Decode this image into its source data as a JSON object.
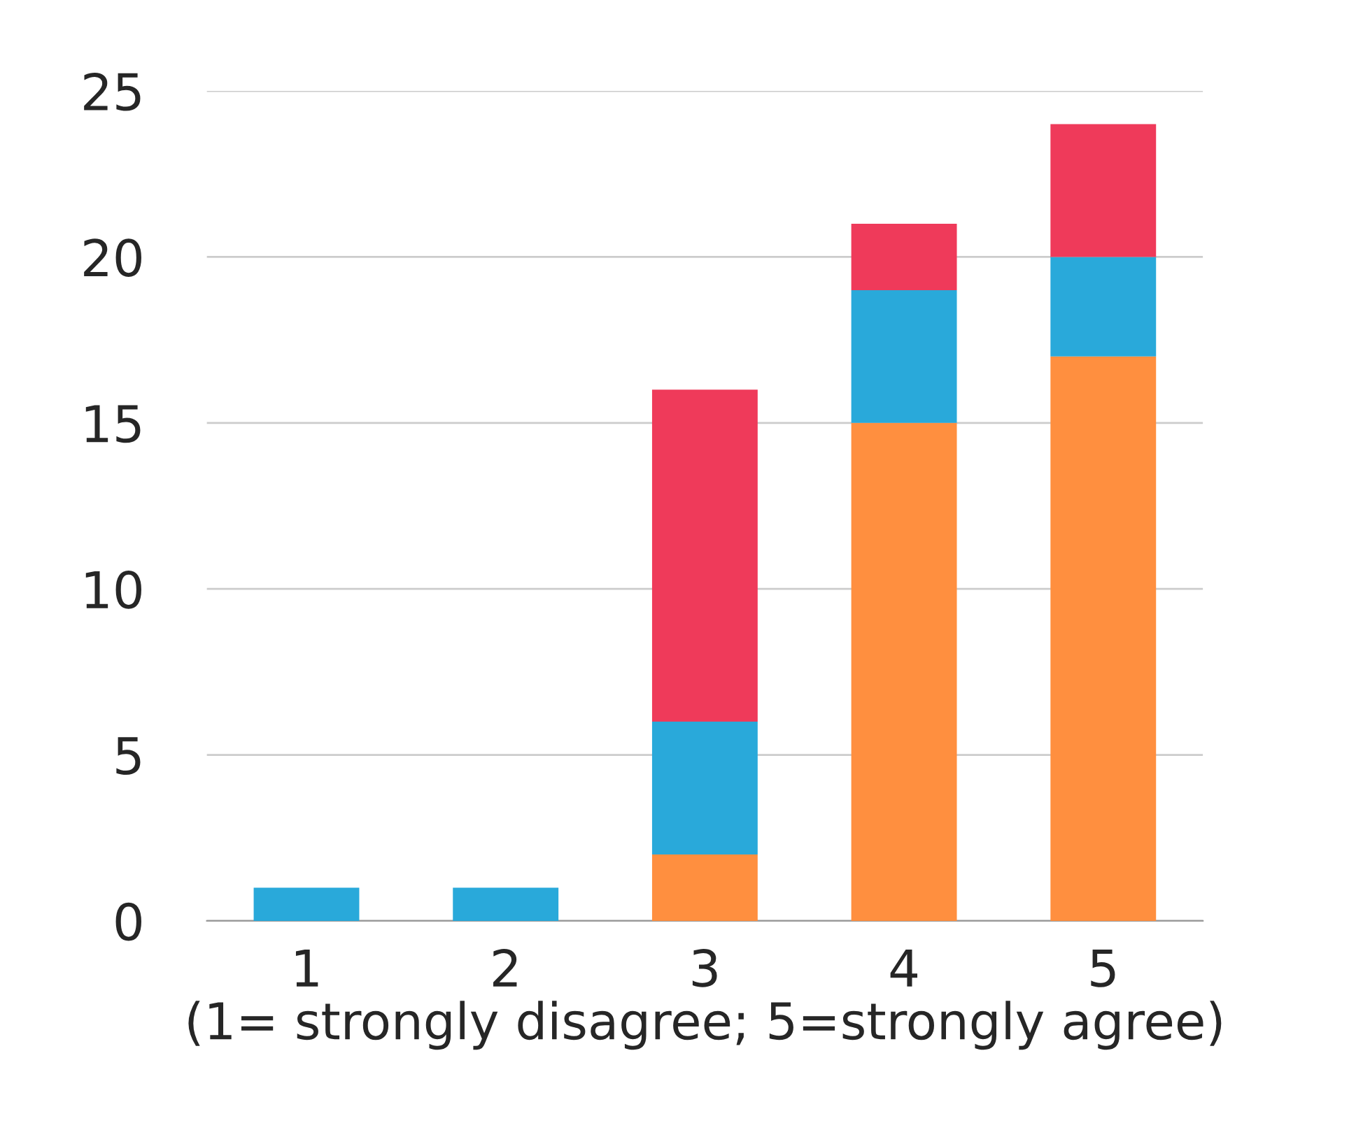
{
  "chart_data": {
    "type": "bar",
    "stacked": true,
    "xlabel": "(1= strongly disagree; 5=strongly agree)",
    "categories": [
      "1",
      "2",
      "3",
      "4",
      "5"
    ],
    "series": [
      {
        "color": "#ff8f3f",
        "values": [
          0,
          0,
          2,
          15,
          17
        ]
      },
      {
        "color": "#29a9da",
        "values": [
          1,
          1,
          4,
          4,
          3
        ]
      },
      {
        "color": "#ef3a5a",
        "values": [
          0,
          0,
          10,
          2,
          4
        ]
      }
    ],
    "ylim": [
      0,
      25
    ],
    "yticks": [
      0,
      5,
      10,
      15,
      20,
      25
    ],
    "grid": "y"
  }
}
